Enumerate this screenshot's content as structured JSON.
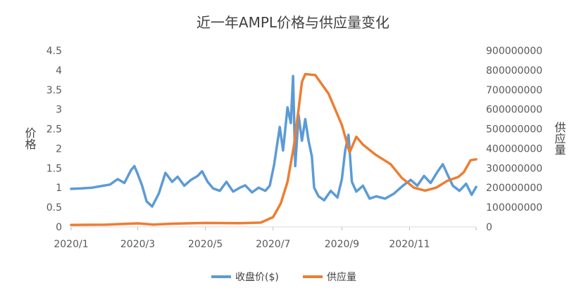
{
  "chart_data": {
    "type": "line",
    "title": "近一年AMPL价格与供应量变化",
    "ylabel": "价格",
    "y2label": "供应量",
    "x_range": [
      "2020-01-01",
      "2020-12-31"
    ],
    "ylim": [
      0,
      4.5
    ],
    "y2lim": [
      0,
      900000000
    ],
    "y_ticks": [
      "0",
      "0.5",
      "1",
      "1.5",
      "2",
      "2.5",
      "3",
      "3.5",
      "4",
      "4.5"
    ],
    "y2_ticks": [
      "0",
      "100000000",
      "200000000",
      "300000000",
      "400000000",
      "500000000",
      "600000000",
      "700000000",
      "800000000",
      "900000000"
    ],
    "x_ticks": [
      {
        "label": "2020/1",
        "date": "2020-01-01"
      },
      {
        "label": "2020/3",
        "date": "2020-03-01"
      },
      {
        "label": "2020/5",
        "date": "2020-05-01"
      },
      {
        "label": "2020/7",
        "date": "2020-07-01"
      },
      {
        "label": "2020/9",
        "date": "2020-09-01"
      },
      {
        "label": "2020/11",
        "date": "2020-11-01"
      }
    ],
    "grid": false,
    "legend_position": "bottom",
    "series": [
      {
        "name": "收盘价($)",
        "color": "#5B9BD5",
        "axis": "left",
        "points": [
          [
            "2020-01-01",
            0.97
          ],
          [
            "2020-01-10",
            0.98
          ],
          [
            "2020-01-20",
            1.0
          ],
          [
            "2020-01-30",
            1.05
          ],
          [
            "2020-02-05",
            1.08
          ],
          [
            "2020-02-12",
            1.22
          ],
          [
            "2020-02-18",
            1.12
          ],
          [
            "2020-02-24",
            1.45
          ],
          [
            "2020-02-27",
            1.55
          ],
          [
            "2020-03-01",
            1.35
          ],
          [
            "2020-03-05",
            1.05
          ],
          [
            "2020-03-09",
            0.65
          ],
          [
            "2020-03-14",
            0.52
          ],
          [
            "2020-03-20",
            0.85
          ],
          [
            "2020-03-26",
            1.38
          ],
          [
            "2020-04-01",
            1.15
          ],
          [
            "2020-04-06",
            1.28
          ],
          [
            "2020-04-12",
            1.05
          ],
          [
            "2020-04-18",
            1.2
          ],
          [
            "2020-04-24",
            1.3
          ],
          [
            "2020-04-28",
            1.42
          ],
          [
            "2020-05-03",
            1.15
          ],
          [
            "2020-05-08",
            0.98
          ],
          [
            "2020-05-14",
            0.92
          ],
          [
            "2020-05-20",
            1.15
          ],
          [
            "2020-05-26",
            0.9
          ],
          [
            "2020-06-01",
            1.0
          ],
          [
            "2020-06-06",
            1.06
          ],
          [
            "2020-06-12",
            0.88
          ],
          [
            "2020-06-18",
            1.0
          ],
          [
            "2020-06-24",
            0.92
          ],
          [
            "2020-06-28",
            1.05
          ],
          [
            "2020-07-02",
            1.6
          ],
          [
            "2020-07-07",
            2.55
          ],
          [
            "2020-07-10",
            1.95
          ],
          [
            "2020-07-14",
            3.05
          ],
          [
            "2020-07-17",
            2.65
          ],
          [
            "2020-07-19",
            3.85
          ],
          [
            "2020-07-21",
            1.55
          ],
          [
            "2020-07-24",
            2.85
          ],
          [
            "2020-07-27",
            2.2
          ],
          [
            "2020-07-30",
            2.75
          ],
          [
            "2020-08-02",
            2.2
          ],
          [
            "2020-08-05",
            1.8
          ],
          [
            "2020-08-07",
            1.0
          ],
          [
            "2020-08-11",
            0.78
          ],
          [
            "2020-08-16",
            0.68
          ],
          [
            "2020-08-22",
            0.92
          ],
          [
            "2020-08-28",
            0.75
          ],
          [
            "2020-09-01",
            1.22
          ],
          [
            "2020-09-04",
            1.95
          ],
          [
            "2020-09-07",
            2.35
          ],
          [
            "2020-09-10",
            1.15
          ],
          [
            "2020-09-14",
            0.9
          ],
          [
            "2020-09-20",
            1.05
          ],
          [
            "2020-09-26",
            0.72
          ],
          [
            "2020-10-02",
            0.78
          ],
          [
            "2020-10-10",
            0.72
          ],
          [
            "2020-10-18",
            0.85
          ],
          [
            "2020-10-26",
            1.05
          ],
          [
            "2020-11-02",
            1.2
          ],
          [
            "2020-11-08",
            1.05
          ],
          [
            "2020-11-14",
            1.3
          ],
          [
            "2020-11-20",
            1.12
          ],
          [
            "2020-11-26",
            1.4
          ],
          [
            "2020-12-01",
            1.6
          ],
          [
            "2020-12-05",
            1.35
          ],
          [
            "2020-12-10",
            1.05
          ],
          [
            "2020-12-16",
            0.92
          ],
          [
            "2020-12-22",
            1.1
          ],
          [
            "2020-12-27",
            0.82
          ],
          [
            "2020-12-31",
            1.02
          ]
        ]
      },
      {
        "name": "供应量",
        "color": "#ED7D31",
        "axis": "right",
        "points": [
          [
            "2020-01-01",
            10000000
          ],
          [
            "2020-02-01",
            11000000
          ],
          [
            "2020-03-01",
            18000000
          ],
          [
            "2020-03-15",
            12000000
          ],
          [
            "2020-04-01",
            16000000
          ],
          [
            "2020-05-01",
            20000000
          ],
          [
            "2020-06-01",
            19000000
          ],
          [
            "2020-06-20",
            22000000
          ],
          [
            "2020-07-01",
            50000000
          ],
          [
            "2020-07-08",
            120000000
          ],
          [
            "2020-07-14",
            230000000
          ],
          [
            "2020-07-20",
            420000000
          ],
          [
            "2020-07-24",
            600000000
          ],
          [
            "2020-07-27",
            740000000
          ],
          [
            "2020-07-30",
            780000000
          ],
          [
            "2020-08-08",
            775000000
          ],
          [
            "2020-08-20",
            680000000
          ],
          [
            "2020-09-01",
            520000000
          ],
          [
            "2020-09-08",
            380000000
          ],
          [
            "2020-09-14",
            460000000
          ],
          [
            "2020-09-20",
            420000000
          ],
          [
            "2020-10-01",
            370000000
          ],
          [
            "2020-10-15",
            320000000
          ],
          [
            "2020-10-25",
            250000000
          ],
          [
            "2020-11-05",
            200000000
          ],
          [
            "2020-11-15",
            185000000
          ],
          [
            "2020-11-25",
            200000000
          ],
          [
            "2020-12-05",
            235000000
          ],
          [
            "2020-12-15",
            255000000
          ],
          [
            "2020-12-20",
            280000000
          ],
          [
            "2020-12-26",
            340000000
          ],
          [
            "2020-12-31",
            345000000
          ]
        ]
      }
    ]
  }
}
